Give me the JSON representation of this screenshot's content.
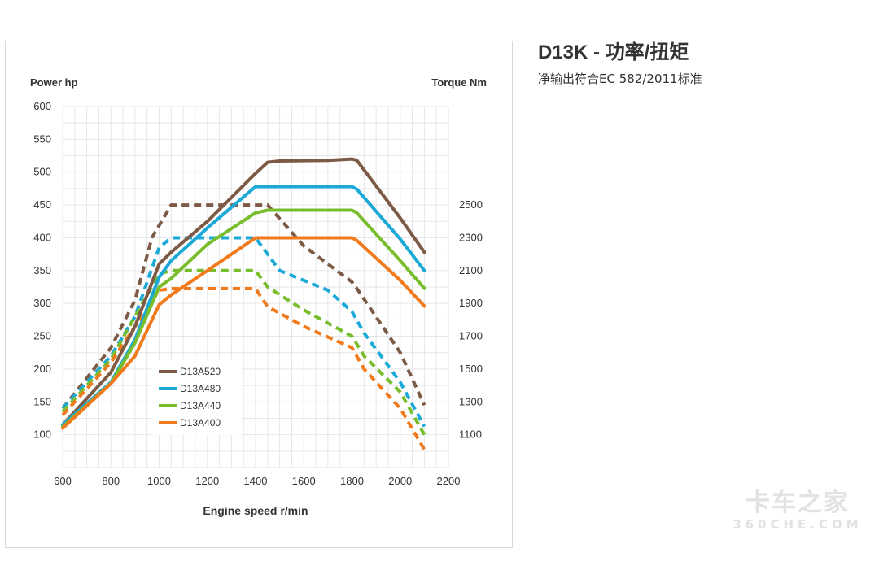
{
  "header": {
    "title": "D13K - 功率/扭矩",
    "subtitle": "净输出符合EC 582/2011标准"
  },
  "watermark": {
    "main": "卡车之家",
    "sub": "360CHE.COM"
  },
  "chart_data": {
    "type": "line",
    "xlabel": "Engine speed r/min",
    "ylabel": "Power hp",
    "y2label": "Torque Nm",
    "xlim": [
      600,
      2200
    ],
    "xticks": [
      600,
      800,
      1000,
      1200,
      1400,
      1600,
      1800,
      2000,
      2200
    ],
    "ylim": [
      50,
      600
    ],
    "yticks": [
      100,
      150,
      200,
      250,
      300,
      350,
      400,
      450,
      500,
      550,
      600
    ],
    "y2lim": [
      900,
      2500
    ],
    "y2ticks": [
      1100,
      1300,
      1500,
      1700,
      1900,
      2100,
      2300,
      2500
    ],
    "grid": true,
    "legend_position": "bottom-center",
    "legend": [
      {
        "name": "D13A520",
        "color": "#7d5a45"
      },
      {
        "name": "D13A480",
        "color": "#1ba9d8"
      },
      {
        "name": "D13A440",
        "color": "#78be2c"
      },
      {
        "name": "D13A400",
        "color": "#f07a1c"
      }
    ],
    "power_series": [
      {
        "name": "D13A520",
        "color": "#7d5a45",
        "x": [
          600,
          800,
          900,
          1000,
          1050,
          1200,
          1400,
          1450,
          1500,
          1700,
          1800,
          1820,
          2000,
          2100
        ],
        "y": [
          115,
          195,
          265,
          360,
          378,
          425,
          498,
          515,
          517,
          518,
          520,
          518,
          430,
          378
        ]
      },
      {
        "name": "D13A480",
        "color": "#1ba9d8",
        "x": [
          600,
          800,
          900,
          1000,
          1050,
          1200,
          1400,
          1800,
          1820,
          2000,
          2100
        ],
        "y": [
          115,
          180,
          245,
          340,
          365,
          415,
          478,
          478,
          474,
          398,
          350
        ]
      },
      {
        "name": "D13A440",
        "color": "#78be2c",
        "x": [
          600,
          800,
          900,
          1000,
          1050,
          1200,
          1400,
          1450,
          1800,
          1820,
          2000,
          2100
        ],
        "y": [
          112,
          178,
          240,
          325,
          338,
          390,
          438,
          442,
          442,
          438,
          365,
          323
        ]
      },
      {
        "name": "D13A400",
        "color": "#f07a1c",
        "x": [
          600,
          800,
          900,
          1000,
          1050,
          1200,
          1400,
          1800,
          1820,
          2000,
          2100
        ],
        "y": [
          110,
          178,
          220,
          298,
          313,
          350,
          400,
          400,
          396,
          335,
          296
        ]
      }
    ],
    "torque_series": [
      {
        "name": "D13A520",
        "color": "#7d5a45",
        "x": [
          600,
          800,
          900,
          970,
          1050,
          1450,
          1600,
          1800,
          1830,
          2000,
          2100
        ],
        "y": [
          1260,
          1630,
          1920,
          2300,
          2500,
          2500,
          2250,
          2030,
          1970,
          1600,
          1280
        ]
      },
      {
        "name": "D13A480",
        "color": "#1ba9d8",
        "x": [
          600,
          800,
          900,
          1000,
          1050,
          1400,
          1500,
          1700,
          1800,
          1850,
          2000,
          2100
        ],
        "y": [
          1260,
          1580,
          1820,
          2240,
          2300,
          2300,
          2100,
          1980,
          1850,
          1720,
          1420,
          1150
        ]
      },
      {
        "name": "D13A440",
        "color": "#78be2c",
        "x": [
          600,
          800,
          900,
          1000,
          1050,
          1400,
          1450,
          1600,
          1800,
          1850,
          2000,
          2100
        ],
        "y": [
          1240,
          1560,
          1820,
          2080,
          2100,
          2100,
          2000,
          1860,
          1700,
          1580,
          1360,
          1100
        ]
      },
      {
        "name": "D13A400",
        "color": "#f07a1c",
        "x": [
          600,
          800,
          900,
          1000,
          1050,
          1400,
          1450,
          1600,
          1800,
          1850,
          2000,
          2100
        ],
        "y": [
          1220,
          1540,
          1760,
          1980,
          1990,
          1990,
          1880,
          1760,
          1630,
          1500,
          1260,
          1010
        ]
      }
    ]
  }
}
